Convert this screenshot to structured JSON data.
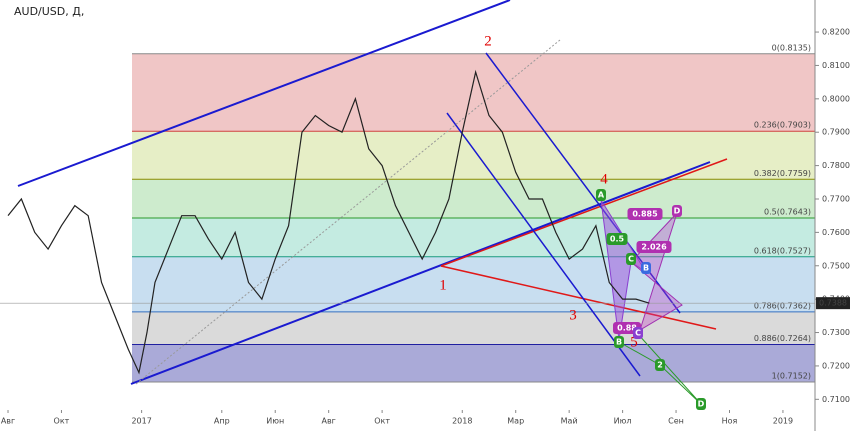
{
  "chart_data": {
    "type": "line",
    "title": "AUD/USD, Д,",
    "x": [
      0,
      0.5,
      1,
      1.5,
      2,
      2.5,
      3,
      3.5,
      4,
      4.5,
      4.9,
      5.2,
      5.5,
      6,
      6.5,
      7,
      7.5,
      8,
      8.5,
      9,
      9.5,
      10,
      10.5,
      11,
      11.5,
      12,
      12.5,
      13,
      13.5,
      14,
      14.5,
      15,
      15.5,
      16,
      16.5,
      17,
      17.5,
      18,
      18.5,
      19,
      19.5,
      20,
      20.5,
      21,
      21.5,
      22,
      22.5,
      23,
      23.5,
      24
    ],
    "series": [
      {
        "name": "AUD/USD",
        "color": "#222222",
        "values": [
          0.765,
          0.77,
          0.76,
          0.755,
          0.762,
          0.768,
          0.765,
          0.745,
          0.735,
          0.725,
          0.718,
          0.73,
          0.745,
          0.755,
          0.765,
          0.765,
          0.758,
          0.752,
          0.76,
          0.745,
          0.74,
          0.752,
          0.762,
          0.79,
          0.795,
          0.792,
          0.79,
          0.8,
          0.785,
          0.78,
          0.768,
          0.76,
          0.752,
          0.76,
          0.77,
          0.79,
          0.808,
          0.795,
          0.79,
          0.778,
          0.77,
          0.77,
          0.76,
          0.752,
          0.755,
          0.762,
          0.745,
          0.74,
          0.74,
          0.7388
        ]
      }
    ],
    "xlim": [
      -0.3,
      30.2
    ],
    "xticks": [
      {
        "value": 0,
        "label": "Авг"
      },
      {
        "value": 2,
        "label": "Окт"
      },
      {
        "value": 5,
        "label": "2017"
      },
      {
        "value": 8,
        "label": "Апр"
      },
      {
        "value": 10,
        "label": "Июн"
      },
      {
        "value": 12,
        "label": "Авг"
      },
      {
        "value": 14,
        "label": "Окт"
      },
      {
        "value": 17,
        "label": "2018"
      },
      {
        "value": 19,
        "label": "Мар"
      },
      {
        "value": 21,
        "label": "Май"
      },
      {
        "value": 23,
        "label": "Июл"
      },
      {
        "value": 25,
        "label": "Сен"
      },
      {
        "value": 27,
        "label": "Ноя"
      },
      {
        "value": 29,
        "label": "2019"
      }
    ],
    "ylim": [
      0.7068,
      0.8296
    ],
    "yticks": [
      {
        "value": 0.82,
        "label": "0.8200"
      },
      {
        "value": 0.81,
        "label": "0.8100"
      },
      {
        "value": 0.8,
        "label": "0.8000"
      },
      {
        "value": 0.79,
        "label": "0.7900"
      },
      {
        "value": 0.78,
        "label": "0.7800"
      },
      {
        "value": 0.77,
        "label": "0.7700"
      },
      {
        "value": 0.76,
        "label": "0.7600"
      },
      {
        "value": 0.75,
        "label": "0.7500"
      },
      {
        "value": 0.74,
        "label": "0.7400"
      },
      {
        "value": 0.73,
        "label": "0.7300"
      },
      {
        "value": 0.72,
        "label": "0.7200"
      },
      {
        "value": 0.71,
        "label": "0.7100"
      }
    ],
    "last_price": {
      "value": 0.7388,
      "label": "0.7388"
    },
    "fib_levels": [
      {
        "value": 0.8135,
        "label": "0(0.8135)",
        "color": "#888888",
        "fill": "#f0c6c6"
      },
      {
        "value": 0.7903,
        "label": "0.236(0.7903)",
        "color": "#d04040",
        "fill": "#e6eec6"
      },
      {
        "value": 0.7759,
        "label": "0.382(0.7759)",
        "color": "#8c8c00",
        "fill": "#cdebcd"
      },
      {
        "value": 0.7643,
        "label": "0.5(0.7643)",
        "color": "#2a9a2a",
        "fill": "#c4ebe1"
      },
      {
        "value": 0.7527,
        "label": "0.618(0.7527)",
        "color": "#1a9a80",
        "fill": "#c8def0"
      },
      {
        "value": 0.7362,
        "label": "0.786(0.7362)",
        "color": "#3570c0",
        "fill": "#dadada"
      },
      {
        "value": 0.7264,
        "label": "0.886(0.7264)",
        "color": "#2020a0",
        "fill": "#aaaad8"
      },
      {
        "value": 0.7152,
        "label": "1(0.7152)",
        "color": "#888888",
        "fill": "none"
      }
    ],
    "annotations": {
      "waves": [
        "1",
        "2",
        "3",
        "4",
        "5"
      ],
      "pattern_labels": [
        "A",
        "0.5",
        "C",
        "B",
        "0.885",
        "D",
        "2.026",
        "0.88",
        "C",
        "B",
        "2",
        "D"
      ]
    }
  }
}
